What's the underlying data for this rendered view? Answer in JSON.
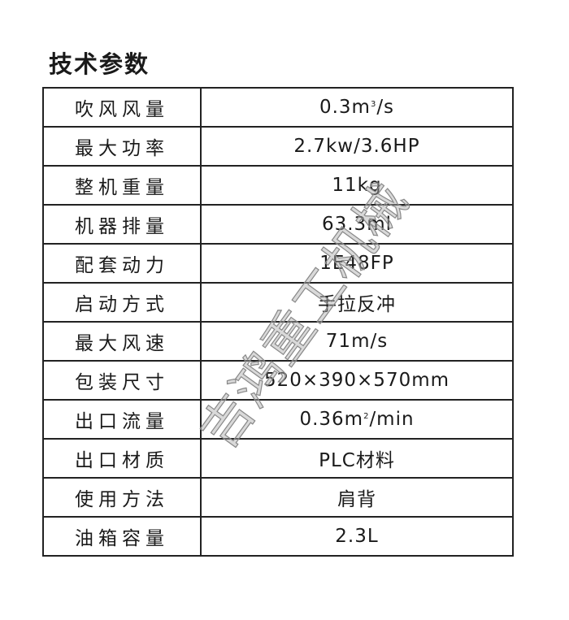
{
  "title": "技术参数",
  "rows": [
    {
      "label": "吹风风量",
      "value": "0.3m",
      "sup": "3",
      "value_suffix": "/s"
    },
    {
      "label": "最大功率",
      "value": "2.7kw/3.6HP"
    },
    {
      "label": "整机重量",
      "value": "11kg"
    },
    {
      "label": "机器排量",
      "value": "63.3ml"
    },
    {
      "label": "配套动力",
      "value": "1E48FP"
    },
    {
      "label": "启动方式",
      "value": "手拉反冲"
    },
    {
      "label": "最大风速",
      "value": "71m/s"
    },
    {
      "label": "包装尺寸",
      "value": "520×390×570mm"
    },
    {
      "label": "出口流量",
      "value": "0.36m",
      "sup": "2",
      "value_suffix": "/min"
    },
    {
      "label": "出口材质",
      "value": "PLC材料"
    },
    {
      "label": "使用方法",
      "value": "肩背"
    },
    {
      "label": "油箱容量",
      "value": "2.3L"
    }
  ],
  "watermark": "吉鸿重工机械"
}
